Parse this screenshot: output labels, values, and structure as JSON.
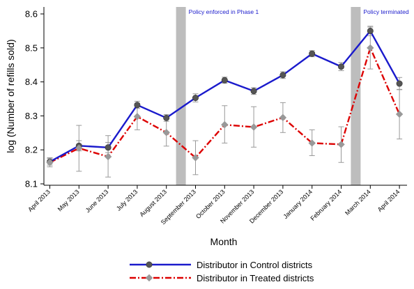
{
  "chart_data": {
    "type": "line",
    "title": "",
    "xlabel": "Month",
    "ylabel": "log (Number of refills sold)",
    "ylim": [
      8.1,
      8.6
    ],
    "yticks": [
      "8.1",
      "8.2",
      "8.3",
      "8.4",
      "8.5",
      "8.6"
    ],
    "categories": [
      "April 2013",
      "May 2013",
      "June 2013",
      "July 2013",
      "August 2013",
      "September 2013",
      "October 2013",
      "November 2013",
      "December 2013",
      "January 2014",
      "February 2014",
      "March 2014",
      "April 2014"
    ],
    "grid": false,
    "legend_position": "bottom",
    "series": [
      {
        "name": "Distributor in Control districts",
        "color": "#1a1acc",
        "marker_color": "#555555",
        "line_style": "solid",
        "marker": "circle",
        "values": [
          8.165,
          8.212,
          8.207,
          8.332,
          8.294,
          8.353,
          8.405,
          8.373,
          8.42,
          8.483,
          8.445,
          8.55,
          8.395
        ],
        "ci_low": [
          8.155,
          8.197,
          8.192,
          8.322,
          8.284,
          8.341,
          8.396,
          8.363,
          8.41,
          8.474,
          8.433,
          8.536,
          8.377
        ],
        "ci_high": [
          8.175,
          8.227,
          8.222,
          8.343,
          8.304,
          8.365,
          8.414,
          8.383,
          8.43,
          8.492,
          8.457,
          8.564,
          8.413
        ]
      },
      {
        "name": "Distributor in Treated districts",
        "color": "#dd0000",
        "marker_color": "#999999",
        "line_style": "dash-dot",
        "marker": "diamond",
        "values": [
          8.163,
          8.205,
          8.18,
          8.298,
          8.251,
          8.177,
          8.274,
          8.267,
          8.295,
          8.22,
          8.216,
          8.5,
          8.305
        ],
        "ci_low": [
          8.15,
          8.137,
          8.12,
          8.259,
          8.211,
          8.127,
          8.22,
          8.208,
          8.251,
          8.183,
          8.163,
          8.438,
          8.232
        ],
        "ci_high": [
          8.177,
          8.272,
          8.242,
          8.337,
          8.292,
          8.227,
          8.33,
          8.327,
          8.339,
          8.259,
          8.268,
          8.561,
          8.378
        ]
      }
    ],
    "shaded_periods": [
      {
        "between": [
          "August 2013",
          "September 2013"
        ],
        "label": "Policy enforced in Phase 1"
      },
      {
        "between": [
          "February 2014",
          "March 2014"
        ],
        "label": "Policy terminated"
      }
    ],
    "colors": {
      "annotation_text": "#1a1acc",
      "shade": "#bdbdbd",
      "error_bar": "#999999"
    }
  }
}
